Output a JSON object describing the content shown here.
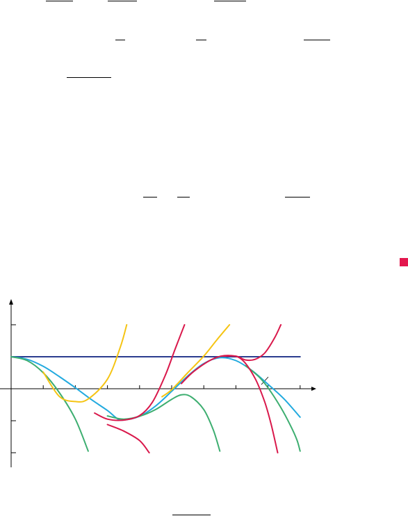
{
  "colors": {
    "accent_marker": "#E3174E",
    "axis": "#000000",
    "curve_constant": "#2A3C8E",
    "curve_cos": "#22AADF",
    "curve_green": "#3DAE70",
    "curve_yellow": "#F5C413",
    "curve_red": "#D9184B"
  },
  "chart_data": {
    "type": "line",
    "x_ticks": 9,
    "y_ticks": [
      2,
      1,
      -1,
      -2
    ],
    "series": [
      {
        "color": "#2A3C8E",
        "points": [
          [
            0,
            1
          ],
          [
            9,
            1
          ]
        ]
      },
      {
        "color": "#22AADF",
        "points": [
          [
            0,
            1
          ],
          [
            0.5,
            0.92
          ],
          [
            1,
            0.7
          ],
          [
            1.5,
            0.38
          ],
          [
            2,
            0.03
          ],
          [
            2.5,
            -0.34
          ],
          [
            3,
            -0.68
          ],
          [
            3.3,
            -0.93
          ],
          [
            3.5,
            -0.98
          ],
          [
            4,
            -0.86
          ],
          [
            4.5,
            -0.54
          ],
          [
            5,
            -0.08
          ],
          [
            5.5,
            0.4
          ],
          [
            6,
            0.79
          ],
          [
            6.5,
            0.97
          ],
          [
            7,
            0.88
          ],
          [
            7.5,
            0.57
          ],
          [
            8,
            0.14
          ],
          [
            8.5,
            -0.32
          ],
          [
            9,
            -0.89
          ]
        ]
      },
      {
        "color": "#3DAE70",
        "points": [
          [
            0,
            1
          ],
          [
            0.5,
            0.88
          ],
          [
            1,
            0.5
          ],
          [
            1.5,
            -0.12
          ],
          [
            2,
            -0.95
          ],
          [
            2.4,
            -1.95
          ]
        ]
      },
      {
        "color": "#3DAE70",
        "points": [
          [
            3,
            -0.85
          ],
          [
            3.5,
            -0.95
          ],
          [
            4,
            -0.86
          ],
          [
            4.5,
            -0.65
          ],
          [
            5,
            -0.33
          ],
          [
            5.3,
            -0.19
          ],
          [
            5.6,
            -0.25
          ],
          [
            6,
            -0.65
          ],
          [
            6.3,
            -1.3
          ],
          [
            6.5,
            -1.95
          ]
        ]
      },
      {
        "color": "#3DAE70",
        "points": [
          [
            7.3,
            0.72
          ],
          [
            7.7,
            0.39
          ],
          [
            8,
            0.03
          ],
          [
            8.4,
            -0.59
          ],
          [
            8.7,
            -1.15
          ],
          [
            8.9,
            -1.6
          ],
          [
            9,
            -1.95
          ]
        ]
      },
      {
        "color": "#F5C413",
        "points": [
          [
            1,
            0.52
          ],
          [
            1.5,
            -0.24
          ],
          [
            2,
            -0.4
          ],
          [
            2.4,
            -0.32
          ],
          [
            3,
            0.3
          ],
          [
            3.4,
            1.3
          ],
          [
            3.6,
            2
          ]
        ]
      },
      {
        "color": "#F5C413",
        "points": [
          [
            4.7,
            -0.25
          ],
          [
            5,
            -0.03
          ],
          [
            5.5,
            0.5
          ],
          [
            6,
            1.02
          ],
          [
            6.4,
            1.52
          ],
          [
            6.8,
            2
          ]
        ]
      },
      {
        "color": "#D9184B",
        "points": [
          [
            2.6,
            -0.76
          ],
          [
            3,
            -0.95
          ],
          [
            3.5,
            -0.98
          ],
          [
            4,
            -0.84
          ],
          [
            4.4,
            -0.42
          ],
          [
            4.8,
            0.42
          ],
          [
            5.1,
            1.22
          ],
          [
            5.4,
            2
          ]
        ]
      },
      {
        "color": "#D9184B",
        "points": [
          [
            3,
            -1.12
          ],
          [
            3.5,
            -1.32
          ],
          [
            4,
            -1.62
          ],
          [
            4.3,
            -2
          ]
        ]
      },
      {
        "color": "#D9184B",
        "points": [
          [
            5.3,
            0.16
          ],
          [
            5.7,
            0.55
          ],
          [
            6.3,
            0.94
          ],
          [
            6.8,
            1.04
          ],
          [
            7.2,
            0.9
          ],
          [
            7.6,
            0.32
          ],
          [
            7.9,
            -0.42
          ],
          [
            8.1,
            -1.12
          ],
          [
            8.3,
            -2
          ]
        ]
      },
      {
        "color": "#D9184B",
        "points": [
          [
            6.6,
            1.02
          ],
          [
            7,
            1.02
          ],
          [
            7.3,
            0.9
          ],
          [
            7.6,
            0.92
          ],
          [
            7.9,
            1.12
          ],
          [
            8.2,
            1.58
          ],
          [
            8.4,
            2
          ]
        ]
      }
    ]
  }
}
